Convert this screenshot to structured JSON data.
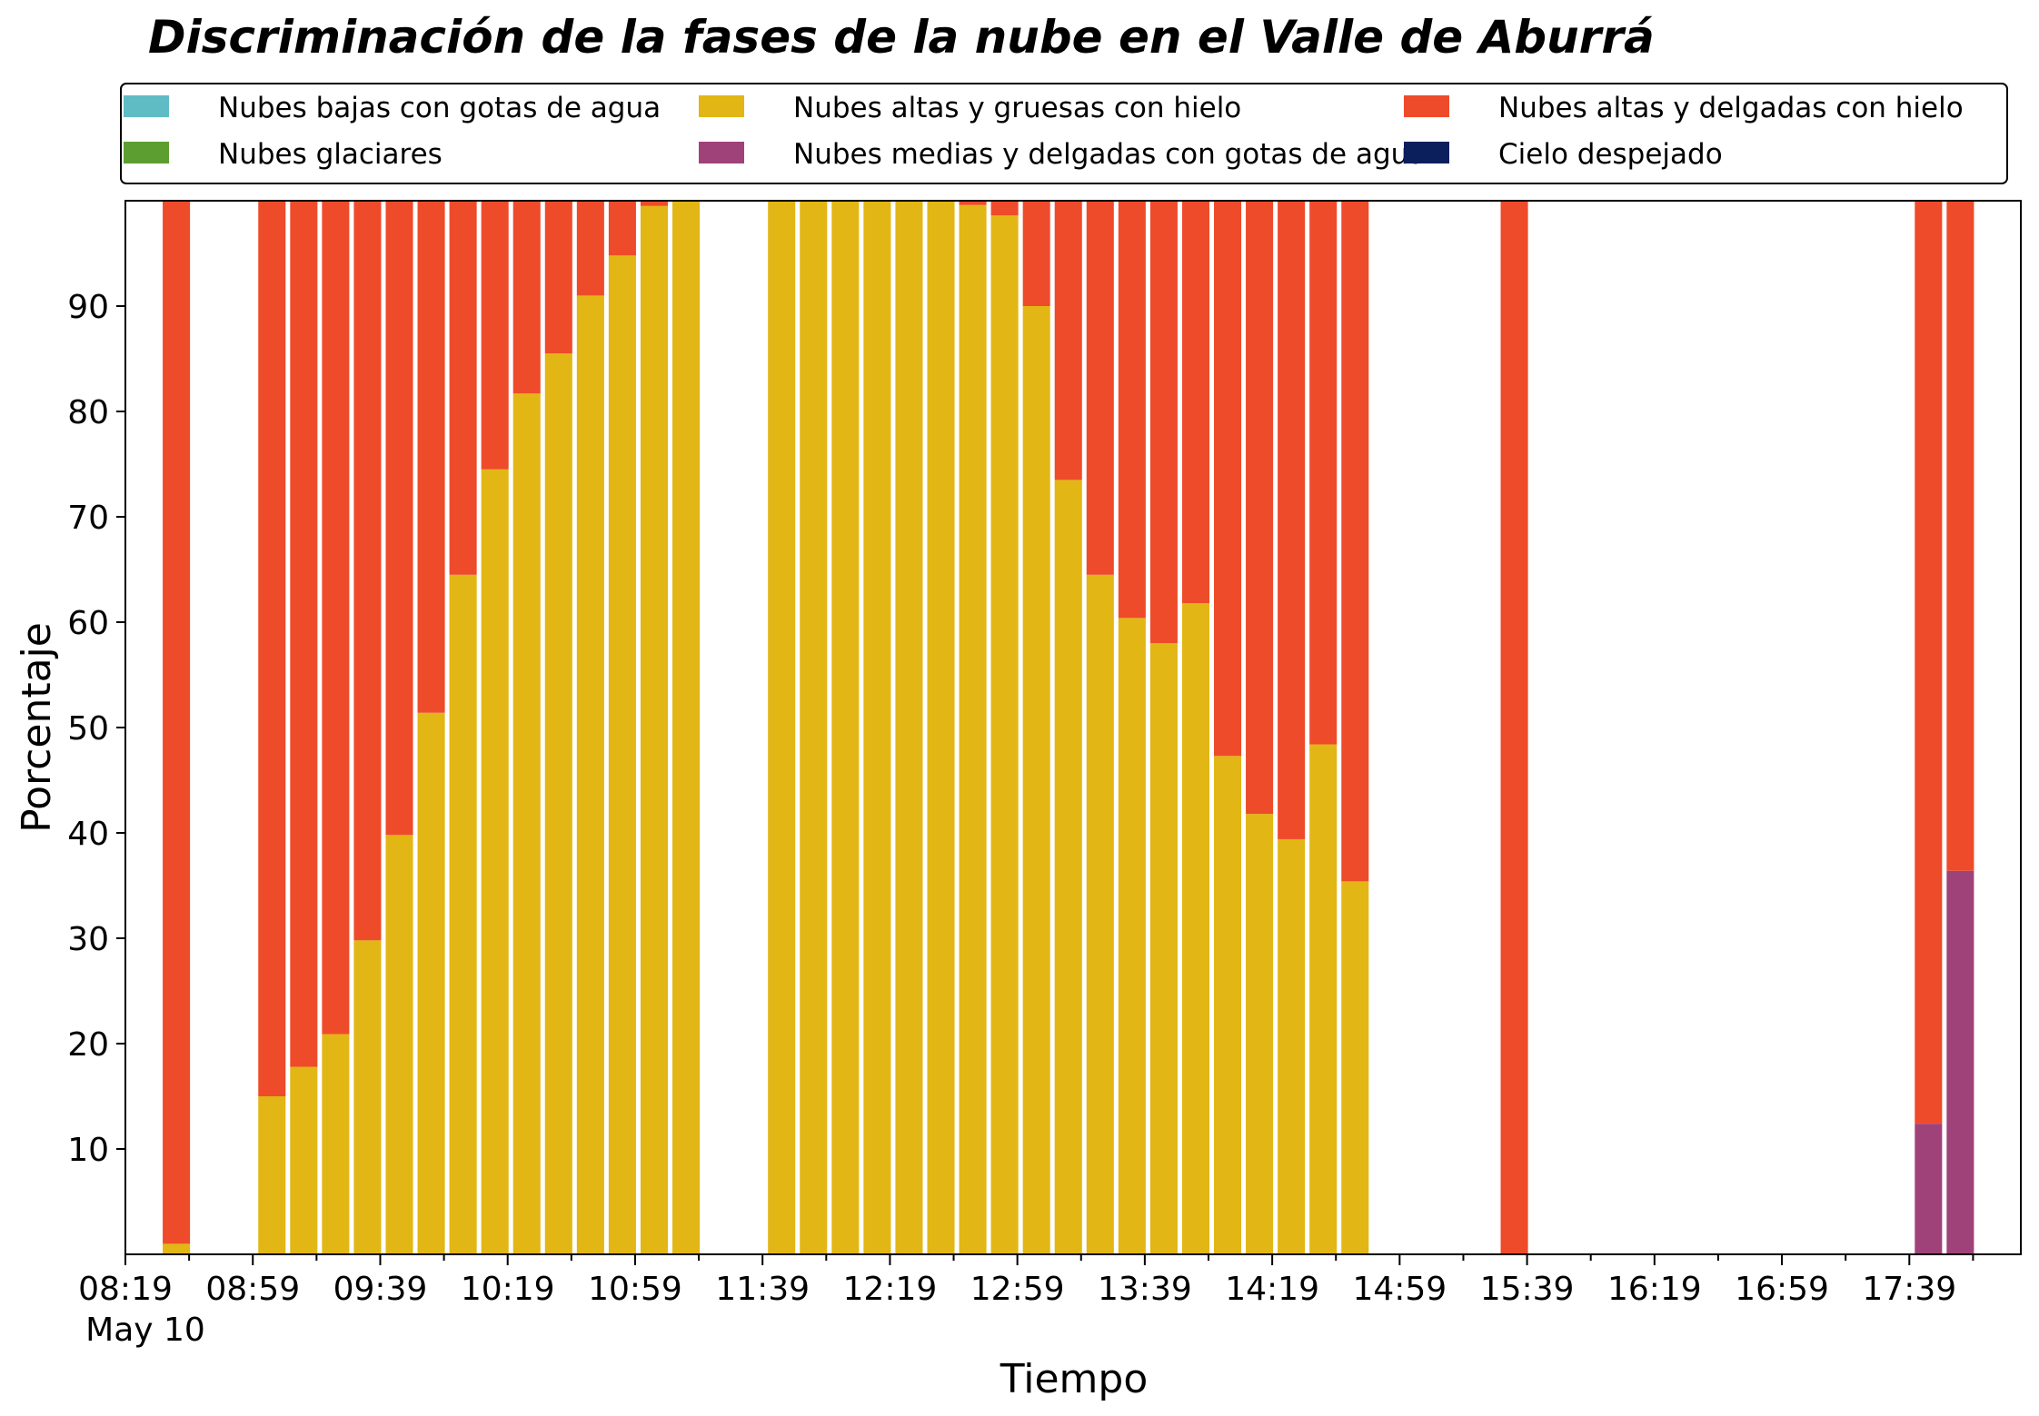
{
  "chart_data": {
    "type": "bar",
    "stacked": true,
    "title": "Discriminación de la fases de la nube en el Valle de Aburrá",
    "xlabel": "Tiempo",
    "ylabel": "Porcentaje",
    "ylim": [
      0,
      100
    ],
    "yticks": [
      10,
      20,
      30,
      40,
      50,
      60,
      70,
      80,
      90
    ],
    "x_date_label": "May 10",
    "xticks": [
      "08:19",
      "08:59",
      "09:39",
      "10:19",
      "10:59",
      "11:39",
      "12:19",
      "12:59",
      "13:39",
      "14:19",
      "14:59",
      "15:39",
      "16:19",
      "16:59",
      "17:39"
    ],
    "x_unit_minutes": 10,
    "x_start": "08:19",
    "x_end": "18:14",
    "legend_position": "top",
    "grid": false,
    "x": [
      "08:35",
      "09:05",
      "09:15",
      "09:25",
      "09:35",
      "09:45",
      "09:55",
      "10:05",
      "10:15",
      "10:25",
      "10:35",
      "10:45",
      "10:55",
      "11:05",
      "11:15",
      "11:45",
      "11:55",
      "12:05",
      "12:15",
      "12:25",
      "12:35",
      "12:45",
      "12:55",
      "13:05",
      "13:15",
      "13:25",
      "13:35",
      "13:45",
      "13:55",
      "14:05",
      "14:15",
      "14:25",
      "14:35",
      "14:45",
      "15:35",
      "17:45",
      "17:55"
    ],
    "series": [
      {
        "name": "Nubes bajas con gotas de agua",
        "color": "#5fbcc4",
        "values": [
          0,
          0,
          0,
          0,
          0,
          0,
          0,
          0,
          0,
          0,
          0,
          0,
          0,
          0,
          0,
          0,
          0,
          0,
          0,
          0,
          0,
          0,
          0,
          0,
          0,
          0,
          0,
          0,
          0,
          0,
          0,
          0,
          0,
          0,
          0,
          0,
          0
        ]
      },
      {
        "name": "Nubes glaciares",
        "color": "#5c9e2f",
        "values": [
          0,
          0,
          0,
          0,
          0,
          0,
          0,
          0,
          0,
          0,
          0,
          0,
          0,
          0,
          0,
          0,
          0,
          0,
          0,
          0,
          0,
          0,
          0,
          0,
          0,
          0,
          0,
          0,
          0,
          0,
          0,
          0,
          0,
          0,
          0,
          0,
          0
        ]
      },
      {
        "name": "Nubes altas y gruesas con hielo",
        "color": "#e2b614",
        "values": [
          1.0,
          15.0,
          17.8,
          20.9,
          29.8,
          39.8,
          51.4,
          64.5,
          74.5,
          81.7,
          85.5,
          91.0,
          94.8,
          99.5,
          100.0,
          100.0,
          100.0,
          100.0,
          100.0,
          100.0,
          100.0,
          99.6,
          98.6,
          90.0,
          73.5,
          64.5,
          60.4,
          58.0,
          61.8,
          47.3,
          41.8,
          39.4,
          48.4,
          35.4,
          0,
          0,
          0
        ]
      },
      {
        "name": "Nubes medias y delgadas con gotas de agua",
        "color": "#a0427a",
        "values": [
          0,
          0,
          0,
          0,
          0,
          0,
          0,
          0,
          0,
          0,
          0,
          0,
          0,
          0,
          0,
          0,
          0,
          0,
          0,
          0,
          0,
          0,
          0,
          0,
          0,
          0,
          0,
          0,
          0,
          0,
          0,
          0,
          0,
          0,
          0,
          12.4,
          36.4
        ]
      },
      {
        "name": "Nubes altas y delgadas con hielo",
        "color": "#ee4b2b",
        "values": [
          99.0,
          85.0,
          82.2,
          79.1,
          70.2,
          60.2,
          48.6,
          35.5,
          25.5,
          18.3,
          14.5,
          9.0,
          5.2,
          0.5,
          0,
          0,
          0,
          0,
          0,
          0,
          0,
          0.4,
          1.4,
          10.0,
          26.5,
          35.5,
          39.6,
          42.0,
          38.2,
          52.7,
          58.2,
          60.6,
          51.6,
          64.6,
          100.0,
          87.6,
          63.6
        ]
      },
      {
        "name": "Cielo despejado",
        "color": "#0b1f5c",
        "values": [
          0,
          0,
          0,
          0,
          0,
          0,
          0,
          0,
          0,
          0,
          0,
          0,
          0,
          0,
          0,
          0,
          0,
          0,
          0,
          0,
          0,
          0,
          0,
          0,
          0,
          0,
          0,
          0,
          0,
          0,
          0,
          0,
          0,
          0,
          0,
          0,
          0
        ]
      }
    ],
    "legend_order": [
      "Nubes bajas con gotas de agua",
      "Nubes glaciares",
      "Nubes altas y gruesas con hielo",
      "Nubes medias y delgadas con gotas de agua",
      "Nubes altas y delgadas con hielo",
      "Cielo despejado"
    ]
  }
}
